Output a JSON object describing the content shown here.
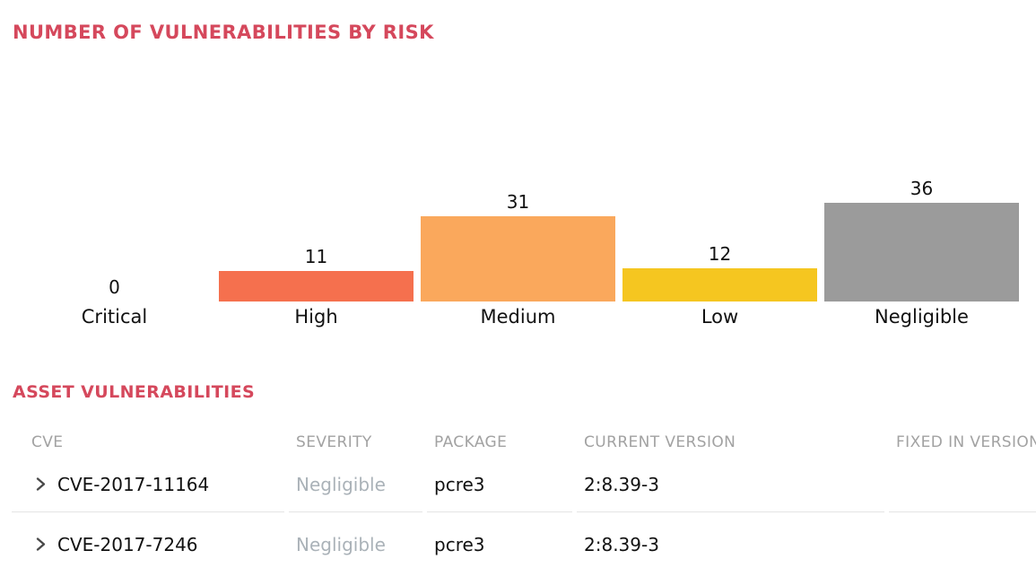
{
  "page": {
    "chart_heading": "NUMBER OF VULNERABILITIES BY RISK",
    "table_heading": "ASSET VULNERABILITIES"
  },
  "colors": {
    "heading_text": "#D5485C",
    "bar_high": "#F5704E",
    "bar_medium": "#FAA85C",
    "bar_low": "#F5C620",
    "bar_negligible": "#9B9B9B",
    "table_header_text": "#A2A2A2",
    "severity_text": "#AAB2B8",
    "row_border": "#E5E5E5"
  },
  "chart_data": {
    "type": "bar",
    "title": "NUMBER OF VULNERABILITIES BY RISK",
    "categories": [
      "Critical",
      "High",
      "Medium",
      "Low",
      "Negligible"
    ],
    "values": [
      0,
      11,
      31,
      12,
      36
    ],
    "bar_colors": [
      null,
      "#F5704E",
      "#FAA85C",
      "#F5C620",
      "#9B9B9B"
    ],
    "xlabel": "",
    "ylabel": "",
    "ylim": [
      0,
      40
    ],
    "grid": false,
    "value_label_position": "outside-top",
    "legend": false
  },
  "table": {
    "columns": [
      "CVE",
      "SEVERITY",
      "PACKAGE",
      "CURRENT VERSION",
      "FIXED IN VERSION"
    ],
    "rows": [
      {
        "cve": "CVE-2017-11164",
        "severity": "Negligible",
        "package": "pcre3",
        "current_version": "2:8.39-3",
        "fixed_in_version": ""
      },
      {
        "cve": "CVE-2017-7246",
        "severity": "Negligible",
        "package": "pcre3",
        "current_version": "2:8.39-3",
        "fixed_in_version": ""
      }
    ]
  }
}
